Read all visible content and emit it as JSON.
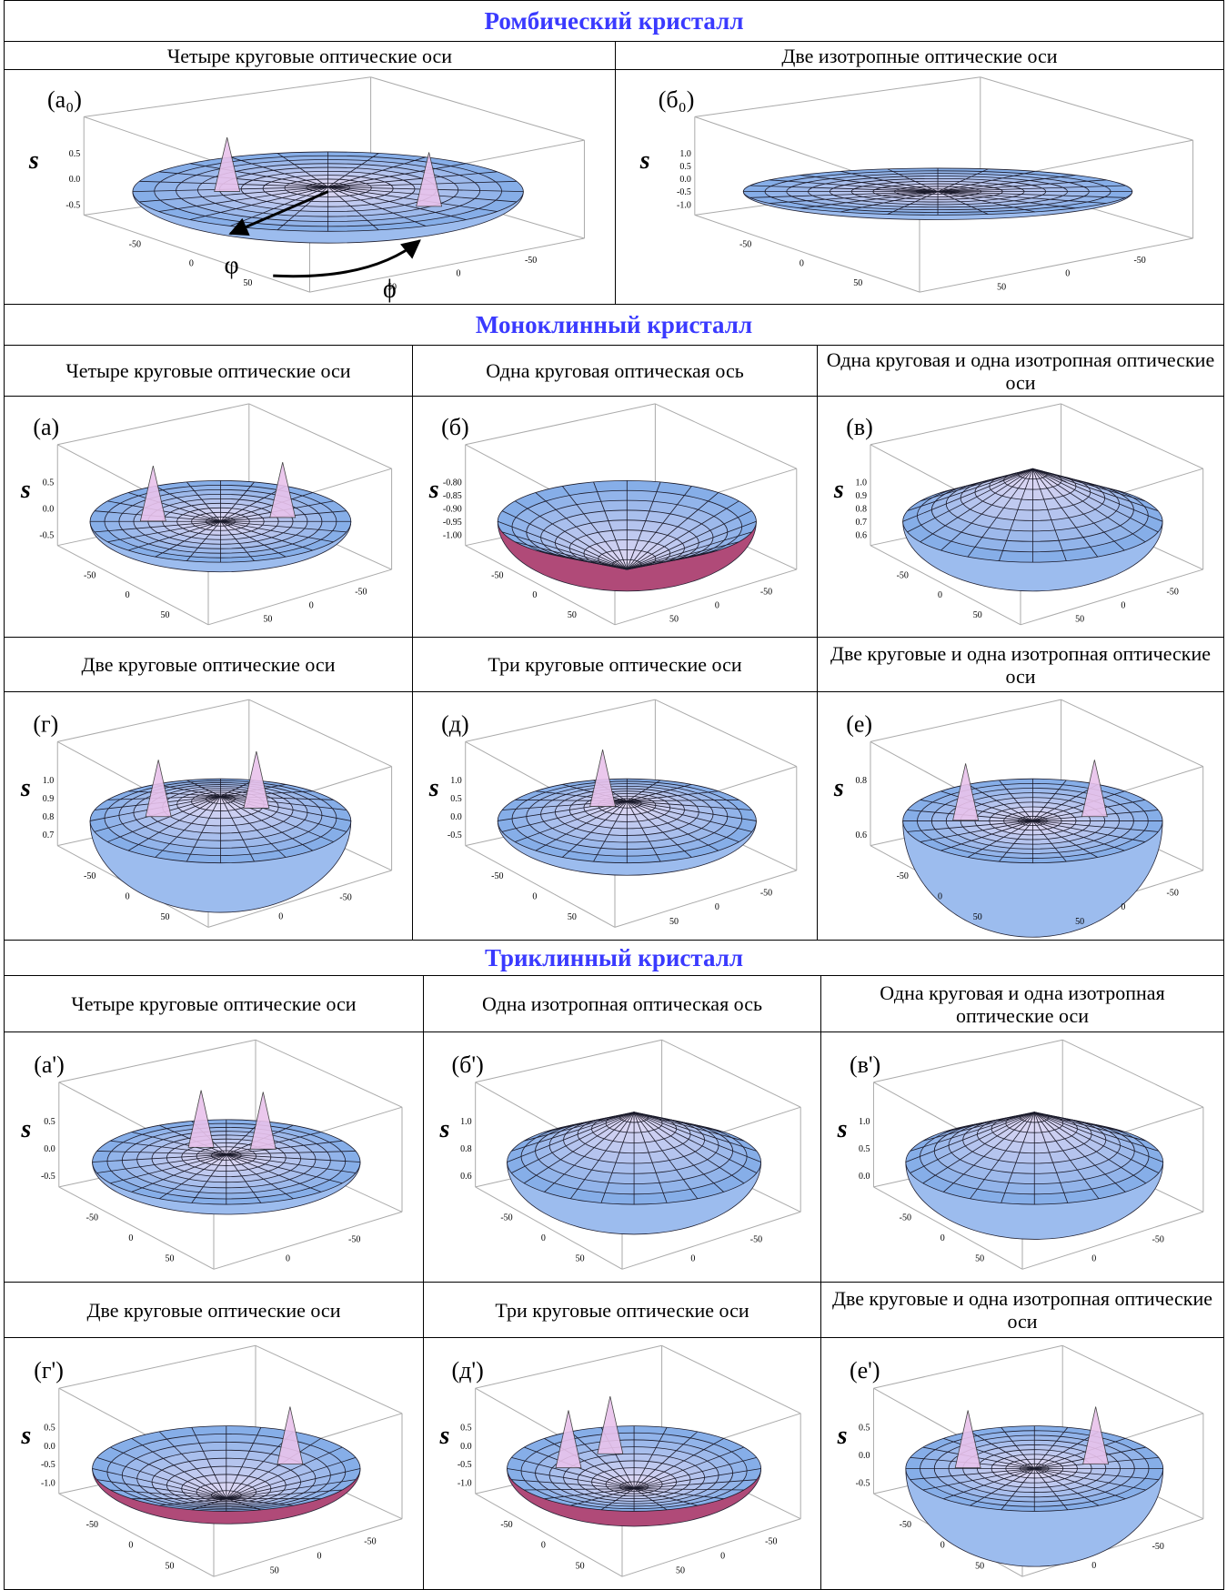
{
  "sections": [
    {
      "title": "Ромбический кристалл",
      "rows": [
        {
          "cells": [
            {
              "caption": "Четыре круговые оптические оси",
              "label": "(a₀)",
              "axis": "s",
              "z_ticks": [
                "0.5",
                "0.0",
                "-0.5"
              ],
              "x_ticks": [
                "-50",
                "0",
                "50"
              ],
              "y_ticks": [
                "50",
                "0",
                "-50"
              ],
              "annotations": [
                "φ",
                "ϕ"
              ]
            },
            {
              "caption": "Две изотропные оптические оси",
              "label": "(б₀)",
              "axis": "s",
              "z_ticks": [
                "1.0",
                "0.5",
                "0.0",
                "-0.5",
                "-1.0"
              ],
              "x_ticks": [
                "-50",
                "0",
                "50"
              ],
              "y_ticks": [
                "50",
                "0",
                "-50"
              ]
            }
          ]
        }
      ]
    },
    {
      "title": "Моноклинный кристалл",
      "rows": [
        {
          "cells": [
            {
              "caption": "Четыре круговые оптические оси",
              "label": "(a)",
              "axis": "s",
              "z_ticks": [
                "0.5",
                "0.0",
                "-0.5"
              ],
              "x_ticks": [
                "-50",
                "0",
                "50"
              ],
              "y_ticks": [
                "50",
                "0",
                "-50"
              ]
            },
            {
              "caption": "Одна круговая оптическая ось",
              "label": "(б)",
              "axis": "s",
              "z_ticks": [
                "-0.80",
                "-0.85",
                "-0.90",
                "-0.95",
                "-1.00"
              ],
              "x_ticks": [
                "-50",
                "0",
                "50"
              ],
              "y_ticks": [
                "50",
                "0",
                "-50"
              ]
            },
            {
              "caption": "Одна круговая и одна изотропная оптические оси",
              "label": "(в)",
              "axis": "s",
              "z_ticks": [
                "1.0",
                "0.9",
                "0.8",
                "0.7",
                "0.6"
              ],
              "x_ticks": [
                "-50",
                "0",
                "50"
              ],
              "y_ticks": [
                "50",
                "0",
                "-50"
              ]
            }
          ]
        },
        {
          "cells": [
            {
              "caption": "Две круговые оптические оси",
              "label": "(г)",
              "axis": "s",
              "z_ticks": [
                "1.0",
                "0.9",
                "0.8",
                "0.7"
              ],
              "x_ticks": [
                "-50",
                "0",
                "50"
              ],
              "y_ticks": [
                "0",
                "-50"
              ]
            },
            {
              "caption": "Три круговые оптические оси",
              "label": "(д)",
              "axis": "s",
              "z_ticks": [
                "1.0",
                "0.5",
                "0.0",
                "-0.5"
              ],
              "x_ticks": [
                "-50",
                "0",
                "50"
              ],
              "y_ticks": [
                "50",
                "0",
                "-50"
              ]
            },
            {
              "caption": "Две круговые и одна изотропная оптические оси",
              "label": "(е)",
              "axis": "s",
              "z_ticks": [
                "0.8",
                "0.6"
              ],
              "x_ticks": [
                "-50",
                "0",
                "50"
              ],
              "y_ticks": [
                "50",
                "0",
                "-50"
              ]
            }
          ]
        }
      ]
    },
    {
      "title": "Триклинный кристалл",
      "rows": [
        {
          "cells": [
            {
              "caption": "Четыре круговые оптические оси",
              "label": "(a')",
              "axis": "s",
              "z_ticks": [
                "0.5",
                "0.0",
                "-0.5"
              ],
              "x_ticks": [
                "-50",
                "0",
                "50"
              ],
              "y_ticks": [
                "0",
                "-50"
              ]
            },
            {
              "caption": "Одна изотропная оптическая ось",
              "label": "(б')",
              "axis": "s",
              "z_ticks": [
                "1.0",
                "0.8",
                "0.6"
              ],
              "x_ticks": [
                "-50",
                "0",
                "50"
              ],
              "y_ticks": [
                "0",
                "-50"
              ]
            },
            {
              "caption": "Одна круговая и одна изотропная оптические оси",
              "label": "(в')",
              "axis": "s",
              "z_ticks": [
                "1.0",
                "0.5",
                "0.0"
              ],
              "x_ticks": [
                "-50",
                "0",
                "50"
              ],
              "y_ticks": [
                "0",
                "-50"
              ]
            }
          ]
        },
        {
          "cells": [
            {
              "caption": "Две круговые оптические оси",
              "label": "(г')",
              "axis": "s",
              "z_ticks": [
                "0.5",
                "0.0",
                "-0.5",
                "-1.0"
              ],
              "x_ticks": [
                "-50",
                "0",
                "50"
              ],
              "y_ticks": [
                "50",
                "0",
                "-50"
              ]
            },
            {
              "caption": "Три круговые оптические оси",
              "label": "(д')",
              "axis": "s",
              "z_ticks": [
                "0.5",
                "0.0",
                "-0.5",
                "-1.0"
              ],
              "x_ticks": [
                "-50",
                "0",
                "50"
              ],
              "y_ticks": [
                "50",
                "0",
                "-50"
              ]
            },
            {
              "caption": "Две круговые и одна изотропная оптические оси",
              "label": "(е')",
              "axis": "s",
              "z_ticks": [
                "0.5",
                "0.0",
                "-0.5"
              ],
              "x_ticks": [
                "-50",
                "0",
                "50"
              ],
              "y_ticks": [
                "0",
                "-50"
              ]
            }
          ]
        }
      ]
    }
  ]
}
